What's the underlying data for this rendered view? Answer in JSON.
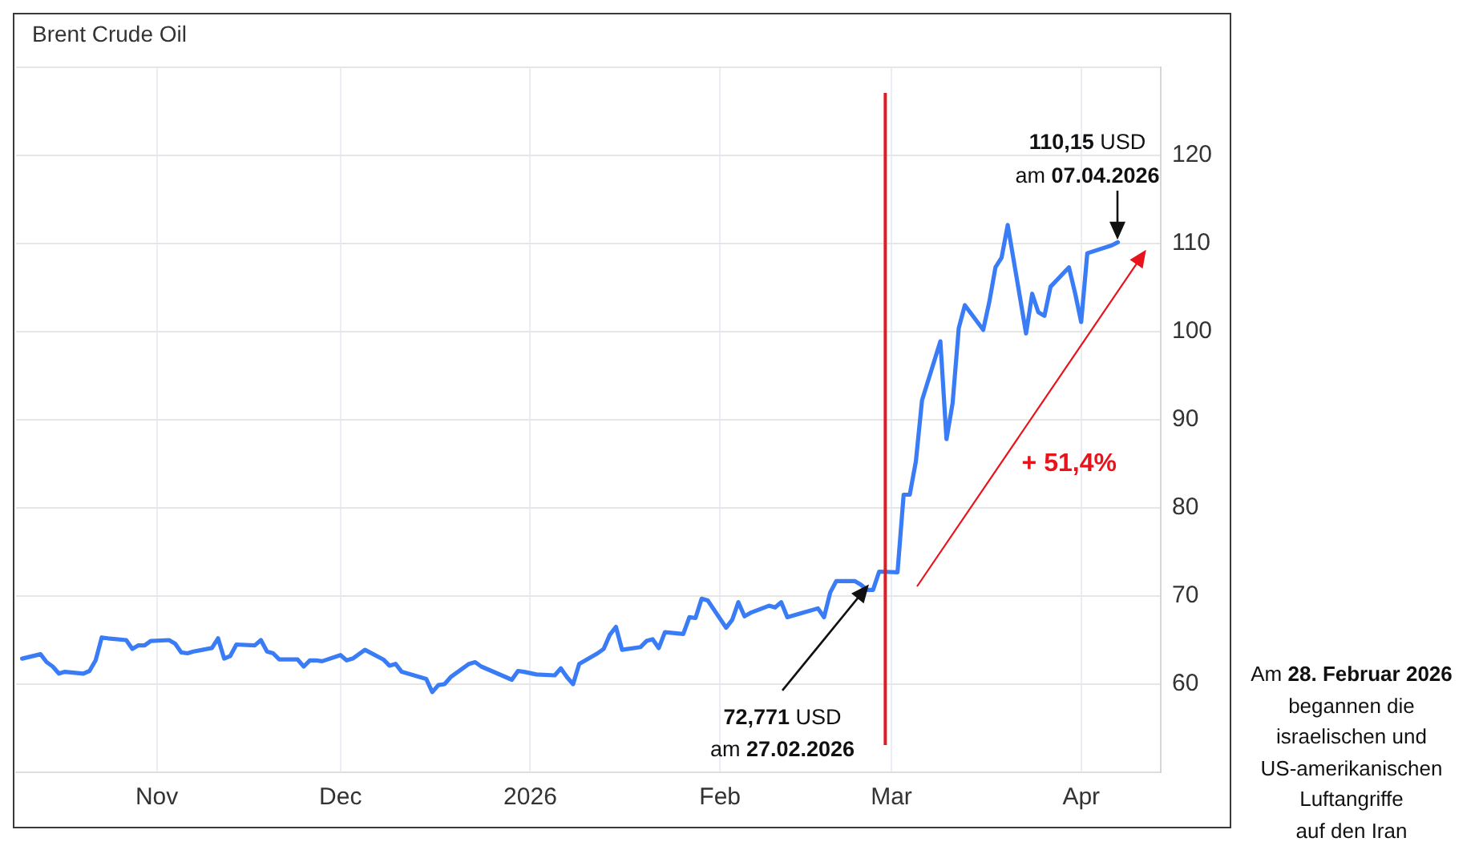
{
  "chart_data": {
    "type": "line",
    "title": "Brent Crude Oil",
    "x": [
      "2025-10-10",
      "2025-10-13",
      "2025-10-14",
      "2025-10-15",
      "2025-10-16",
      "2025-10-17",
      "2025-10-20",
      "2025-10-21",
      "2025-10-22",
      "2025-10-23",
      "2025-10-24",
      "2025-10-27",
      "2025-10-28",
      "2025-10-29",
      "2025-10-30",
      "2025-10-31",
      "2025-11-03",
      "2025-11-04",
      "2025-11-05",
      "2025-11-06",
      "2025-11-07",
      "2025-11-10",
      "2025-11-11",
      "2025-11-12",
      "2025-11-13",
      "2025-11-14",
      "2025-11-17",
      "2025-11-18",
      "2025-11-19",
      "2025-11-20",
      "2025-11-21",
      "2025-11-24",
      "2025-11-25",
      "2025-11-26",
      "2025-11-27",
      "2025-11-28",
      "2025-12-01",
      "2025-12-02",
      "2025-12-03",
      "2025-12-04",
      "2025-12-05",
      "2025-12-08",
      "2025-12-09",
      "2025-12-10",
      "2025-12-11",
      "2025-12-12",
      "2025-12-15",
      "2025-12-16",
      "2025-12-17",
      "2025-12-18",
      "2025-12-19",
      "2025-12-22",
      "2025-12-23",
      "2025-12-24",
      "2025-12-29",
      "2025-12-30",
      "2025-12-31",
      "2026-01-02",
      "2026-01-05",
      "2026-01-06",
      "2026-01-07",
      "2026-01-08",
      "2026-01-09",
      "2026-01-12",
      "2026-01-13",
      "2026-01-14",
      "2026-01-15",
      "2026-01-16",
      "2026-01-19",
      "2026-01-20",
      "2026-01-21",
      "2026-01-22",
      "2026-01-23",
      "2026-01-26",
      "2026-01-27",
      "2026-01-28",
      "2026-01-29",
      "2026-01-30",
      "2026-02-02",
      "2026-02-03",
      "2026-02-04",
      "2026-02-05",
      "2026-02-06",
      "2026-02-09",
      "2026-02-10",
      "2026-02-11",
      "2026-02-12",
      "2026-02-13",
      "2026-02-17",
      "2026-02-18",
      "2026-02-19",
      "2026-02-20",
      "2026-02-23",
      "2026-02-24",
      "2026-02-25",
      "2026-02-26",
      "2026-02-27",
      "2026-03-02",
      "2026-03-03",
      "2026-03-04",
      "2026-03-05",
      "2026-03-06",
      "2026-03-09",
      "2026-03-10",
      "2026-03-11",
      "2026-03-12",
      "2026-03-13",
      "2026-03-16",
      "2026-03-17",
      "2026-03-18",
      "2026-03-19",
      "2026-03-20",
      "2026-03-23",
      "2026-03-24",
      "2026-03-25",
      "2026-03-26",
      "2026-03-27",
      "2026-03-30",
      "2026-03-31",
      "2026-04-01",
      "2026-04-02",
      "2026-04-06",
      "2026-04-07"
    ],
    "values": [
      62.9,
      63.4,
      62.5,
      62.0,
      61.2,
      61.4,
      61.2,
      61.5,
      62.7,
      65.3,
      65.2,
      65.0,
      64.0,
      64.4,
      64.4,
      64.9,
      65.0,
      64.6,
      63.6,
      63.5,
      63.7,
      64.1,
      65.2,
      62.9,
      63.2,
      64.5,
      64.4,
      65.0,
      63.7,
      63.5,
      62.8,
      62.8,
      62.0,
      62.7,
      62.7,
      62.6,
      63.3,
      62.7,
      62.9,
      63.4,
      63.9,
      62.8,
      62.1,
      62.3,
      61.4,
      61.2,
      60.6,
      59.1,
      59.9,
      60.0,
      60.8,
      62.3,
      62.5,
      62.0,
      60.5,
      61.5,
      61.4,
      61.1,
      61.0,
      61.8,
      60.8,
      60.0,
      62.3,
      63.5,
      64.0,
      65.6,
      66.5,
      63.9,
      64.2,
      64.9,
      65.1,
      64.1,
      65.9,
      65.7,
      67.6,
      67.5,
      69.7,
      69.5,
      66.4,
      67.3,
      69.3,
      67.7,
      68.1,
      68.9,
      68.7,
      69.3,
      67.6,
      67.8,
      68.6,
      67.6,
      70.4,
      71.7,
      71.7,
      71.3,
      70.7,
      70.7,
      72.771,
      72.7,
      81.5,
      81.5,
      85.3,
      92.2,
      98.9,
      87.8,
      91.9,
      100.4,
      103.0,
      100.2,
      103.4,
      107.3,
      108.4,
      112.1,
      99.8,
      104.3,
      102.2,
      101.8,
      105.1,
      107.3,
      104.4,
      101.1,
      108.9,
      109.8,
      110.15
    ],
    "color": "#3a7cf5",
    "marker": "none",
    "xlim": [
      "2025-10-09",
      "2026-04-14"
    ],
    "xticks": [
      {
        "value": "2025-11-01",
        "label": "Nov"
      },
      {
        "value": "2025-12-01",
        "label": "Dec"
      },
      {
        "value": "2026-01-01",
        "label": "2026"
      },
      {
        "value": "2026-02-01",
        "label": "Feb"
      },
      {
        "value": "2026-03-01",
        "label": "Mar"
      },
      {
        "value": "2026-04-01",
        "label": "Apr"
      }
    ],
    "ylim": [
      50,
      130
    ],
    "yticks": [
      60,
      70,
      80,
      90,
      100,
      110,
      120,
      {
        "value": 130,
        "label": null
      }
    ],
    "grid": true,
    "ref_lines": [
      {
        "axis": "x",
        "value": "2026-02-28",
        "color": "#e31b23"
      }
    ],
    "annotations": [
      "72,771 USD",
      "am 27.02.2026",
      "110,15 USD",
      {
        "text": "am 07.04.2026",
        "x": "2026-04-07",
        "y": 110.15
      },
      "+ 51,4%",
      "Am 28. Februar 2026\nbegannen die\nisraelischen und\nUS-amerikanischen\nLuftangriffe\nauf den Iran"
    ]
  }
}
